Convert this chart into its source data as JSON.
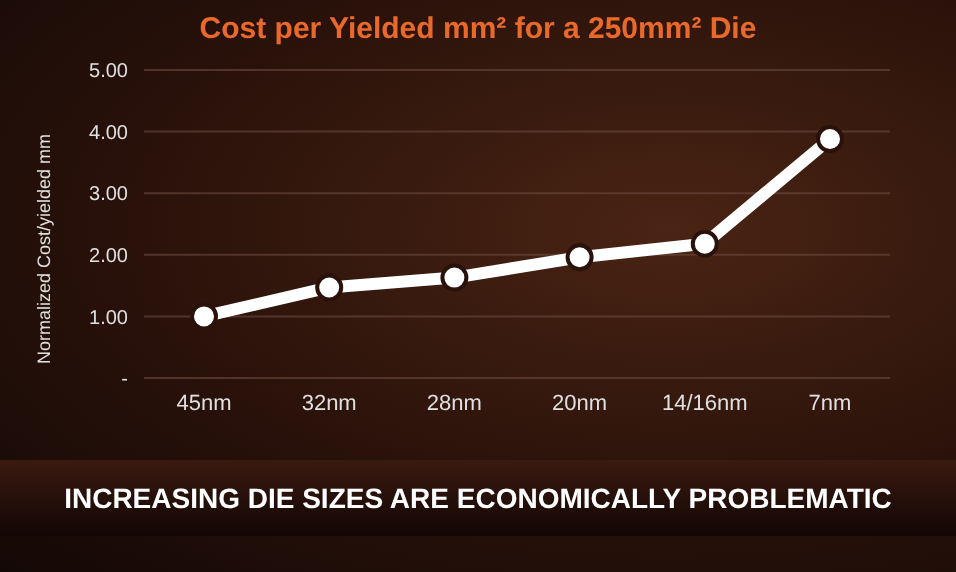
{
  "chart_data": {
    "type": "line",
    "title": "Cost per Yielded mm² for a 250mm² Die",
    "ylabel": "Normalized Cost/yielded mm",
    "categories": [
      "45nm",
      "32nm",
      "28nm",
      "20nm",
      "14/16nm",
      "7nm"
    ],
    "series": [
      {
        "color": "#ffffff",
        "values": [
          1.0,
          1.47,
          1.63,
          1.96,
          2.18,
          3.88
        ]
      }
    ],
    "ylim": [
      0,
      5
    ],
    "yticks": [
      {
        "value": 0,
        "label": "-"
      },
      {
        "value": 1,
        "label": "1.00"
      },
      {
        "value": 2,
        "label": "2.00"
      },
      {
        "value": 3,
        "label": "3.00"
      },
      {
        "value": 4,
        "label": "4.00"
      },
      {
        "value": 5,
        "label": "5.00"
      }
    ],
    "grid": "y",
    "marker": "circle",
    "line_style": "solid",
    "legend": false,
    "annotations": [
      "INCREASING DIE SIZES ARE ECONOMICALLY PROBLEMATIC"
    ]
  }
}
